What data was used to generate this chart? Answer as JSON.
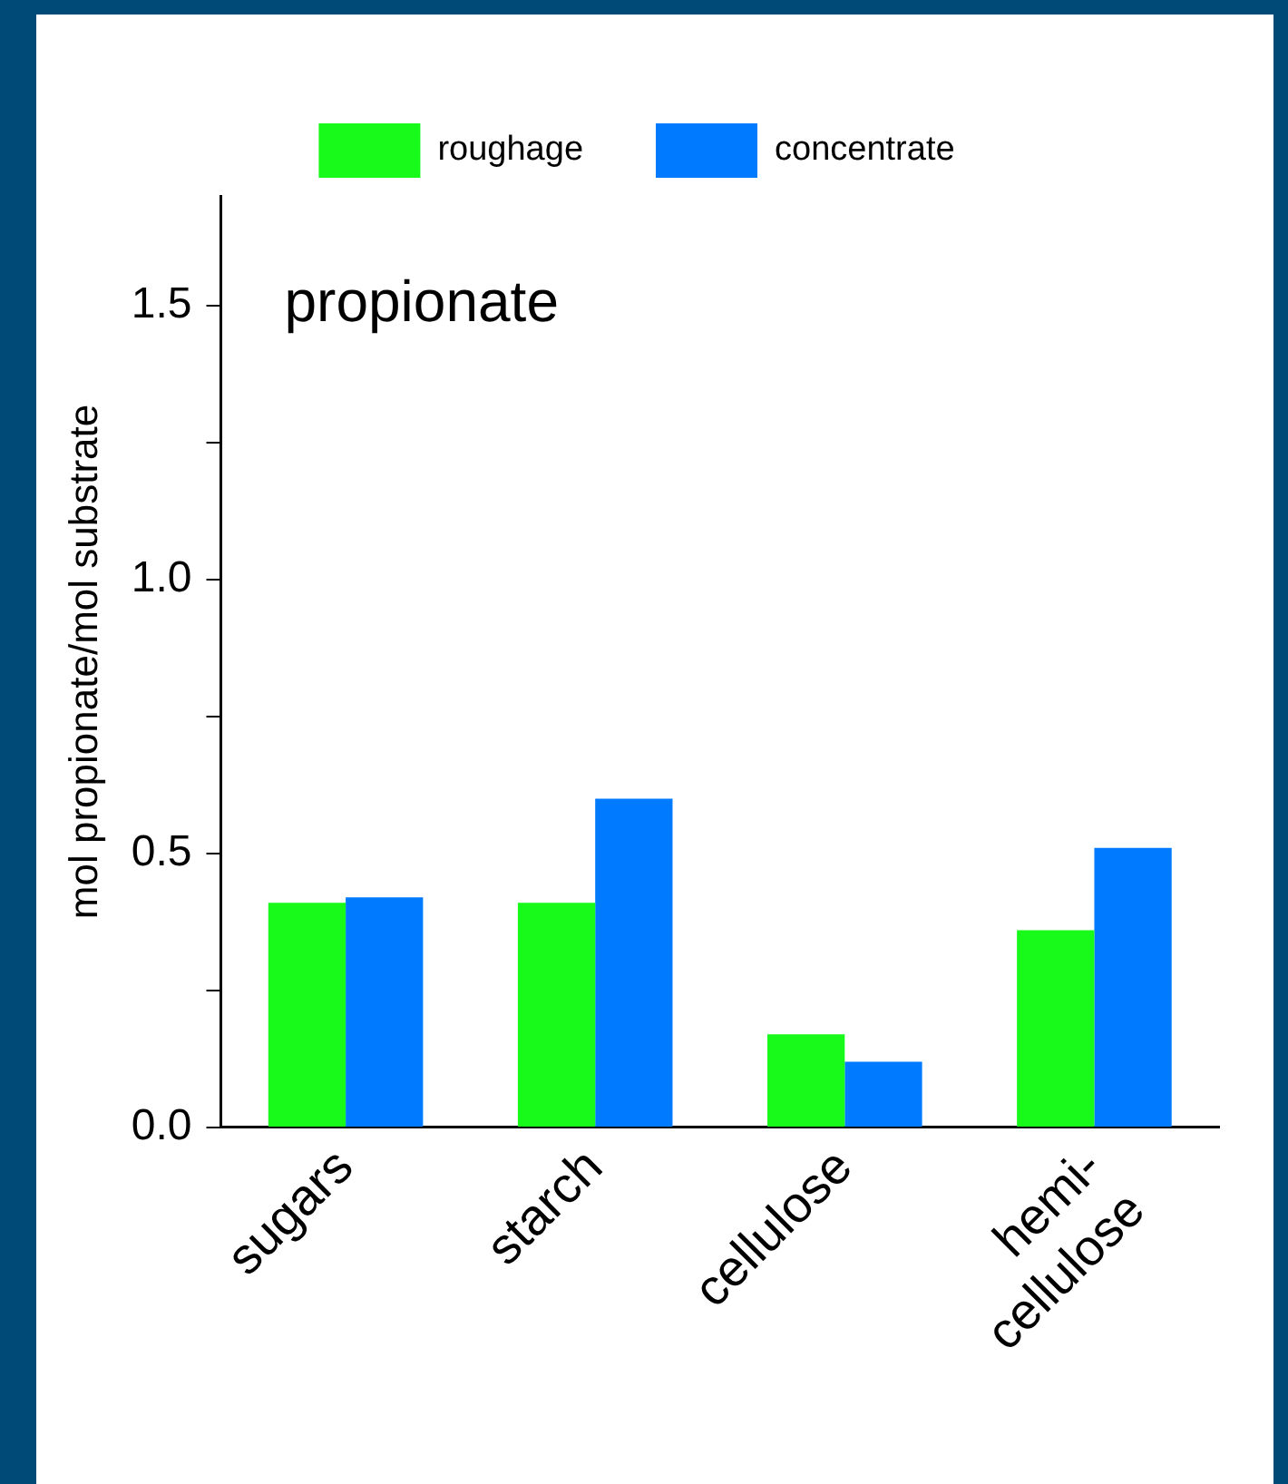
{
  "chart_data": {
    "type": "bar",
    "title": "propionate",
    "ylabel": "mol propionate/mol substrate",
    "categories": [
      "sugars",
      "starch",
      "cellulose",
      "hemi-\ncellulose"
    ],
    "series": [
      {
        "name": "roughage",
        "color": "#18fa1a",
        "values": [
          0.41,
          0.41,
          0.17,
          0.36
        ]
      },
      {
        "name": "concentrate",
        "color": "#007bff",
        "values": [
          0.42,
          0.6,
          0.12,
          0.51
        ]
      }
    ],
    "ylim": [
      0,
      1.7
    ],
    "yticks": [
      {
        "value": 0,
        "label": "0.0"
      },
      {
        "value": 0.25,
        "label": null
      },
      {
        "value": 0.5,
        "label": "0.5"
      },
      {
        "value": 0.75,
        "label": null
      },
      {
        "value": 1,
        "label": "1.0"
      },
      {
        "value": 1.25,
        "label": null
      },
      {
        "value": 1.5,
        "label": "1.5"
      }
    ],
    "grid": false,
    "legend": "top"
  }
}
